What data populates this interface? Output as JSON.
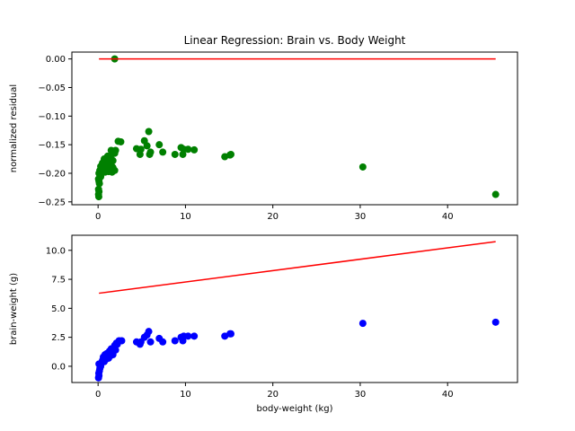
{
  "chart_data": [
    {
      "type": "scatter",
      "title": "Linear Regression: Brain vs. Body Weight",
      "xlabel": "",
      "ylabel": "normalized residual",
      "xlim": [
        -3,
        48
      ],
      "ylim": [
        -0.255,
        0.012
      ],
      "xticks": [
        0,
        10,
        20,
        30,
        40
      ],
      "yticks": [
        0.0,
        -0.05,
        -0.1,
        -0.15,
        -0.2,
        -0.25
      ],
      "ytick_labels": [
        "0.00",
        "−0.05",
        "−0.10",
        "−0.15",
        "−0.20",
        "−0.25"
      ],
      "grid": false,
      "series": [
        {
          "color": "#008000",
          "marker": "circle",
          "points": [
            [
              1.9,
              0.0
            ],
            [
              5.8,
              -0.127
            ],
            [
              2.3,
              -0.144
            ],
            [
              2.6,
              -0.145
            ],
            [
              5.3,
              -0.143
            ],
            [
              5.6,
              -0.152
            ],
            [
              7.0,
              -0.15
            ],
            [
              4.4,
              -0.157
            ],
            [
              4.9,
              -0.158
            ],
            [
              6.0,
              -0.163
            ],
            [
              7.4,
              -0.163
            ],
            [
              9.5,
              -0.155
            ],
            [
              9.8,
              -0.158
            ],
            [
              10.3,
              -0.158
            ],
            [
              11.0,
              -0.159
            ],
            [
              4.8,
              -0.167
            ],
            [
              5.9,
              -0.167
            ],
            [
              8.8,
              -0.167
            ],
            [
              9.7,
              -0.167
            ],
            [
              14.5,
              -0.171
            ],
            [
              15.1,
              -0.168
            ],
            [
              15.2,
              -0.167
            ],
            [
              30.3,
              -0.189
            ],
            [
              45.5,
              -0.237
            ],
            [
              1.5,
              -0.16
            ],
            [
              1.7,
              -0.162
            ],
            [
              1.9,
              -0.165
            ],
            [
              2.0,
              -0.16
            ],
            [
              1.1,
              -0.17
            ],
            [
              1.3,
              -0.172
            ],
            [
              1.5,
              -0.175
            ],
            [
              1.7,
              -0.178
            ],
            [
              0.7,
              -0.175
            ],
            [
              0.9,
              -0.178
            ],
            [
              1.1,
              -0.18
            ],
            [
              1.3,
              -0.183
            ],
            [
              1.5,
              -0.186
            ],
            [
              1.7,
              -0.19
            ],
            [
              1.9,
              -0.195
            ],
            [
              1.6,
              -0.198
            ],
            [
              0.5,
              -0.182
            ],
            [
              0.7,
              -0.186
            ],
            [
              0.9,
              -0.19
            ],
            [
              1.1,
              -0.193
            ],
            [
              0.3,
              -0.188
            ],
            [
              0.4,
              -0.192
            ],
            [
              0.6,
              -0.195
            ],
            [
              0.8,
              -0.198
            ],
            [
              0.2,
              -0.195
            ],
            [
              0.3,
              -0.199
            ],
            [
              1.2,
              -0.197
            ],
            [
              1.4,
              -0.194
            ],
            [
              0.1,
              -0.2
            ],
            [
              0.2,
              -0.203
            ],
            [
              0.3,
              -0.206
            ],
            [
              0.05,
              -0.21
            ],
            [
              0.1,
              -0.214
            ],
            [
              0.15,
              -0.218
            ],
            [
              0.05,
              -0.228
            ],
            [
              0.1,
              -0.232
            ],
            [
              0.05,
              -0.237
            ],
            [
              0.08,
              -0.241
            ]
          ]
        }
      ],
      "fit_line": {
        "color": "#ff0000",
        "x": [
          0.1,
          45.5
        ],
        "y": [
          0.0,
          0.0
        ]
      }
    },
    {
      "type": "scatter",
      "title": "",
      "xlabel": "body-weight (kg)",
      "ylabel": "brain-weight (g)",
      "xlim": [
        -3,
        48
      ],
      "ylim": [
        -1.4,
        11.3
      ],
      "xticks": [
        0,
        10,
        20,
        30,
        40
      ],
      "yticks": [
        0.0,
        2.5,
        5.0,
        7.5,
        10.0
      ],
      "ytick_labels": [
        "0.0",
        "2.5",
        "5.0",
        "7.5",
        "10.0"
      ],
      "grid": false,
      "series": [
        {
          "color": "#0000ff",
          "marker": "circle",
          "points": [
            [
              0.05,
              -1.0
            ],
            [
              0.1,
              -0.8
            ],
            [
              0.08,
              -0.6
            ],
            [
              0.15,
              -0.4
            ],
            [
              0.2,
              -0.2
            ],
            [
              0.3,
              0.0
            ],
            [
              0.1,
              0.2
            ],
            [
              0.4,
              0.3
            ],
            [
              0.5,
              0.5
            ],
            [
              0.7,
              0.4
            ],
            [
              0.9,
              0.6
            ],
            [
              0.6,
              0.8
            ],
            [
              0.8,
              1.0
            ],
            [
              1.0,
              1.1
            ],
            [
              1.2,
              0.7
            ],
            [
              1.4,
              0.9
            ],
            [
              1.3,
              1.3
            ],
            [
              1.5,
              1.5
            ],
            [
              1.6,
              1.2
            ],
            [
              1.8,
              1.6
            ],
            [
              1.9,
              1.8
            ],
            [
              1.7,
              1.0
            ],
            [
              2.0,
              1.4
            ],
            [
              2.1,
              2.0
            ],
            [
              2.4,
              2.2
            ],
            [
              2.7,
              2.2
            ],
            [
              2.2,
              1.9
            ],
            [
              4.4,
              2.1
            ],
            [
              4.8,
              1.9
            ],
            [
              4.9,
              2.1
            ],
            [
              5.3,
              2.5
            ],
            [
              5.6,
              2.7
            ],
            [
              5.8,
              3.0
            ],
            [
              6.0,
              2.1
            ],
            [
              7.0,
              2.4
            ],
            [
              7.4,
              2.1
            ],
            [
              8.8,
              2.2
            ],
            [
              9.5,
              2.5
            ],
            [
              9.7,
              2.2
            ],
            [
              9.8,
              2.6
            ],
            [
              10.3,
              2.6
            ],
            [
              11.0,
              2.6
            ],
            [
              14.5,
              2.6
            ],
            [
              15.1,
              2.8
            ],
            [
              15.2,
              2.8
            ],
            [
              30.3,
              3.7
            ],
            [
              45.5,
              3.8
            ]
          ]
        }
      ],
      "fit_line": {
        "color": "#ff0000",
        "x": [
          0.1,
          45.5
        ],
        "y": [
          6.3,
          10.75
        ]
      }
    }
  ]
}
